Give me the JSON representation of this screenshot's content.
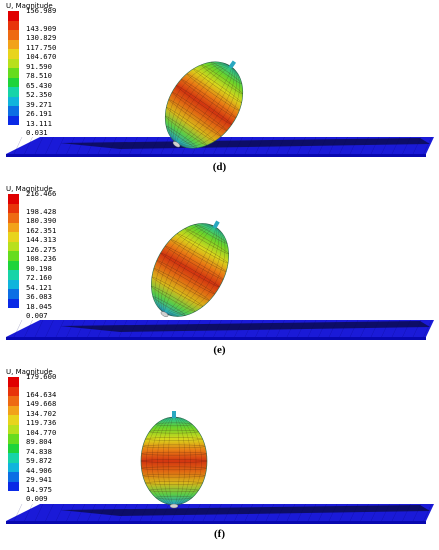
{
  "panels": [
    {
      "caption": "(d)",
      "legend_title": "U, Magnitude",
      "legend_values": [
        "156.989",
        "143.909",
        "130.829",
        "117.750",
        "104.670",
        "91.590",
        "78.510",
        "65.430",
        "52.350",
        "39.271",
        "26.191",
        "13.111",
        "0.031"
      ]
    },
    {
      "caption": "(e)",
      "legend_title": "U, Magnitude",
      "legend_values": [
        "216.466",
        "198.428",
        "180.390",
        "162.351",
        "144.313",
        "126.275",
        "108.236",
        "90.198",
        "72.160",
        "54.121",
        "36.083",
        "18.045",
        "0.007"
      ]
    },
    {
      "caption": "(f)",
      "legend_title": "U, Magnitude",
      "legend_values": [
        "179.600",
        "164.634",
        "149.668",
        "134.702",
        "119.736",
        "104.770",
        "89.804",
        "74.838",
        "59.872",
        "44.906",
        "29.941",
        "14.975",
        "0.009"
      ]
    }
  ],
  "legend_colors": [
    "#e00000",
    "#e8340a",
    "#ee6a12",
    "#f2a219",
    "#e8d41c",
    "#b8e01c",
    "#66dc1e",
    "#1ed43a",
    "#16d4a8",
    "#10b4dc",
    "#0c6ee4",
    "#0a2ae6"
  ],
  "plate_colors": {
    "top": "#1a1ad8",
    "edge": "#0808b0",
    "dark": "#0a0a40"
  }
}
